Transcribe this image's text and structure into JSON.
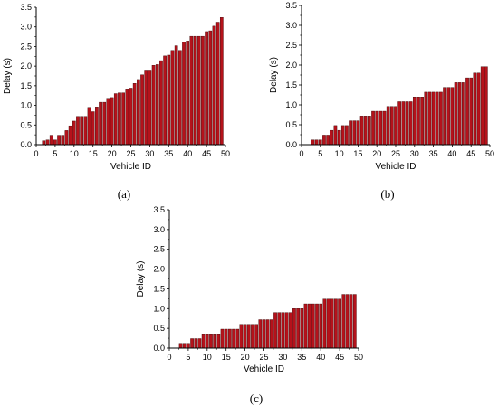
{
  "chart_data": [
    {
      "type": "bar",
      "caption": "(a)",
      "xlabel": "Vehicle ID",
      "ylabel": "Delay (s)",
      "xlim": [
        0,
        50
      ],
      "ylim": [
        0,
        3.5
      ],
      "xticks": [
        0,
        5,
        10,
        15,
        20,
        25,
        30,
        35,
        40,
        45,
        50
      ],
      "yticks": [
        0.0,
        0.5,
        1.0,
        1.5,
        2.0,
        2.5,
        3.0,
        3.5
      ],
      "x": [
        1,
        2,
        3,
        4,
        5,
        6,
        7,
        8,
        9,
        10,
        11,
        12,
        13,
        14,
        15,
        16,
        17,
        18,
        19,
        20,
        21,
        22,
        23,
        24,
        25,
        26,
        27,
        28,
        29,
        30,
        31,
        32,
        33,
        34,
        35,
        36,
        37,
        38,
        39,
        40,
        41,
        42,
        43,
        44,
        45,
        46,
        47,
        48,
        49,
        50
      ],
      "values": [
        0,
        0.1,
        0.12,
        0.24,
        0.12,
        0.24,
        0.24,
        0.36,
        0.48,
        0.6,
        0.72,
        0.72,
        0.72,
        0.95,
        0.84,
        0.96,
        1.08,
        1.08,
        1.18,
        1.2,
        1.3,
        1.32,
        1.32,
        1.42,
        1.44,
        1.56,
        1.66,
        1.78,
        1.9,
        1.9,
        2.02,
        2.04,
        2.14,
        2.26,
        2.28,
        2.4,
        2.52,
        2.4,
        2.62,
        2.64,
        2.76,
        2.76,
        2.76,
        2.76,
        2.88,
        2.9,
        3.02,
        3.12,
        3.24,
        0
      ]
    },
    {
      "type": "bar",
      "caption": "(b)",
      "xlabel": "Vehicle ID",
      "ylabel": "Delay (s)",
      "xlim": [
        0,
        50
      ],
      "ylim": [
        0,
        3.5
      ],
      "xticks": [
        0,
        5,
        10,
        15,
        20,
        25,
        30,
        35,
        40,
        45,
        50
      ],
      "yticks": [
        0.0,
        0.5,
        1.0,
        1.5,
        2.0,
        2.5,
        3.0,
        3.5
      ],
      "x": [
        1,
        2,
        3,
        4,
        5,
        6,
        7,
        8,
        9,
        10,
        11,
        12,
        13,
        14,
        15,
        16,
        17,
        18,
        19,
        20,
        21,
        22,
        23,
        24,
        25,
        26,
        27,
        28,
        29,
        30,
        31,
        32,
        33,
        34,
        35,
        36,
        37,
        38,
        39,
        40,
        41,
        42,
        43,
        44,
        45,
        46,
        47,
        48,
        49,
        50
      ],
      "values": [
        0,
        0,
        0.12,
        0.12,
        0.12,
        0.24,
        0.24,
        0.36,
        0.48,
        0.36,
        0.48,
        0.48,
        0.6,
        0.6,
        0.6,
        0.72,
        0.72,
        0.72,
        0.84,
        0.84,
        0.84,
        0.84,
        0.96,
        0.96,
        0.96,
        1.08,
        1.08,
        1.08,
        1.08,
        1.2,
        1.2,
        1.2,
        1.32,
        1.32,
        1.32,
        1.32,
        1.32,
        1.44,
        1.44,
        1.44,
        1.56,
        1.56,
        1.56,
        1.68,
        1.68,
        1.8,
        1.8,
        1.96,
        1.96,
        0
      ]
    },
    {
      "type": "bar",
      "caption": "(c)",
      "xlabel": "Vehicle ID",
      "ylabel": "Delay (s)",
      "xlim": [
        0,
        50
      ],
      "ylim": [
        0,
        3.5
      ],
      "xticks": [
        0,
        5,
        10,
        15,
        20,
        25,
        30,
        35,
        40,
        45,
        50
      ],
      "yticks": [
        0.0,
        0.5,
        1.0,
        1.5,
        2.0,
        2.5,
        3.0,
        3.5
      ],
      "x": [
        1,
        2,
        3,
        4,
        5,
        6,
        7,
        8,
        9,
        10,
        11,
        12,
        13,
        14,
        15,
        16,
        17,
        18,
        19,
        20,
        21,
        22,
        23,
        24,
        25,
        26,
        27,
        28,
        29,
        30,
        31,
        32,
        33,
        34,
        35,
        36,
        37,
        38,
        39,
        40,
        41,
        42,
        43,
        44,
        45,
        46,
        47,
        48,
        49,
        50
      ],
      "values": [
        0,
        0,
        0.12,
        0.12,
        0.12,
        0.24,
        0.24,
        0.24,
        0.36,
        0.36,
        0.36,
        0.36,
        0.36,
        0.48,
        0.48,
        0.48,
        0.48,
        0.48,
        0.6,
        0.6,
        0.6,
        0.6,
        0.6,
        0.72,
        0.72,
        0.72,
        0.72,
        0.9,
        0.9,
        0.9,
        0.9,
        0.9,
        1.0,
        1.0,
        1.0,
        1.12,
        1.12,
        1.12,
        1.12,
        1.12,
        1.24,
        1.24,
        1.24,
        1.24,
        1.24,
        1.36,
        1.36,
        1.36,
        1.36,
        0
      ]
    }
  ],
  "colors": {
    "bar_fill": "#b5121b",
    "bar_stroke": "#3a0000",
    "axis": "#000000"
  }
}
